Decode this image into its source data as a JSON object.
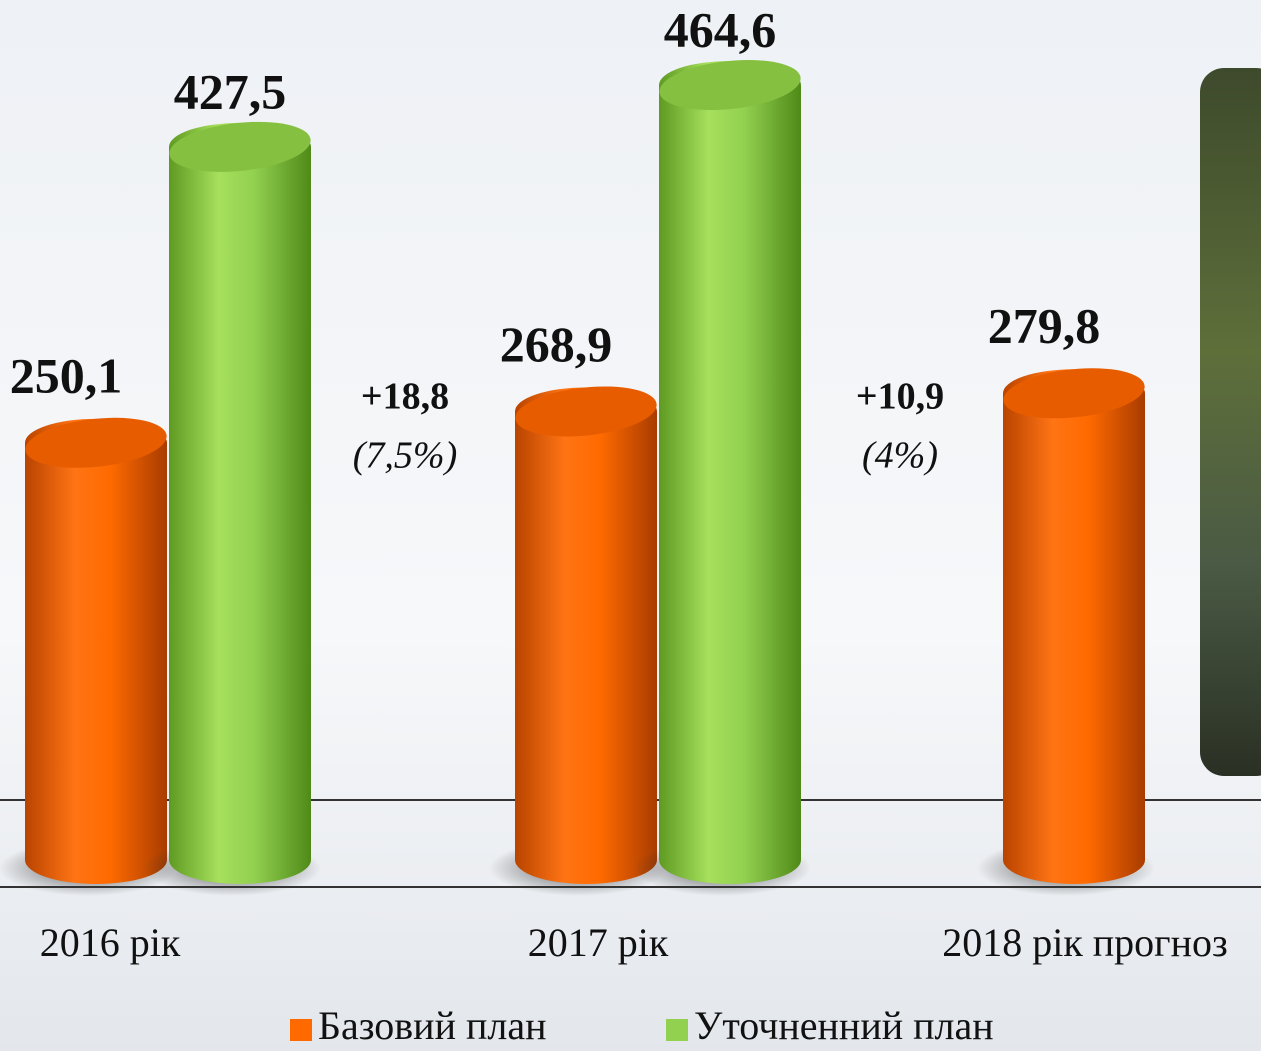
{
  "chart_data": {
    "type": "bar3d",
    "categories": [
      "2016 рік",
      "2017 рік",
      "2018 рік прогноз"
    ],
    "series": [
      {
        "name": "Базовий план",
        "color": "#ff6a00",
        "values": [
          250.1,
          268.9,
          279.8
        ],
        "value_labels": [
          "250,1",
          "268,9",
          "279,8"
        ]
      },
      {
        "name": "Уточненний план",
        "color": "#92d050",
        "values": [
          427.5,
          464.6,
          null
        ],
        "value_labels": [
          "427,5",
          "464,6",
          null
        ]
      }
    ],
    "annotations": [
      {
        "change": "+18,8",
        "percent": "(7,5%)"
      },
      {
        "change": "+10,9",
        "percent": "(4%)"
      }
    ]
  }
}
